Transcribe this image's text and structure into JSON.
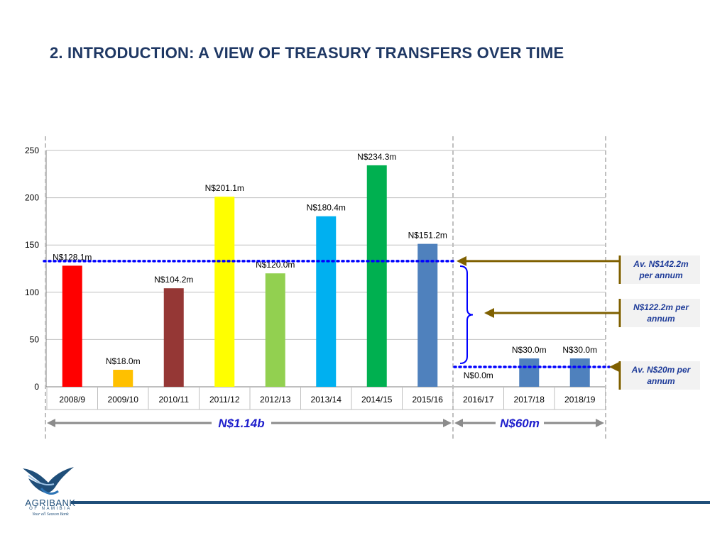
{
  "slide": {
    "title": "2. INTRODUCTION: A VIEW OF TREASURY TRANSFERS OVER TIME"
  },
  "logo": {
    "name": "AGRIBANK",
    "sub": "OF NAMIBIA",
    "tagline": "Your all Season Bank"
  },
  "colors": {
    "title": "#1f3864",
    "average_line": "#0000ff",
    "annotation_arrow": "#7f6000",
    "brace": "#0000ff",
    "span_arrow": "#8c8c8c",
    "total_text": "#1f1fcc",
    "footer_line": "#1f4e79"
  },
  "chart_data": {
    "type": "bar",
    "categories": [
      "2008/9",
      "2009/10",
      "2010/11",
      "2011/12",
      "2012/13",
      "2013/14",
      "2014/15",
      "2015/16",
      "2016/17",
      "2017/18",
      "2018/19"
    ],
    "values": [
      128.1,
      18.0,
      104.2,
      201.1,
      120.0,
      180.4,
      234.3,
      151.2,
      0.0,
      30.0,
      30.0
    ],
    "data_labels": [
      "N$128.1m",
      "N$18.0m",
      "N$104.2m",
      "N$201.1m",
      "N$120.0m",
      "N$180.4m",
      "N$234.3m",
      "N$151.2m",
      "N$0.0m",
      "N$30.0m",
      "N$30.0m"
    ],
    "bar_colors": [
      "#ff0000",
      "#ffc000",
      "#953735",
      "#ffff00",
      "#92d050",
      "#00b0f0",
      "#00b050",
      "#4f81bd",
      "#4f81bd",
      "#4f81bd",
      "#4f81bd"
    ],
    "ylim": [
      0,
      250
    ],
    "yticks": [
      0,
      50,
      100,
      150,
      200,
      250
    ],
    "ytick_labels": [
      "0",
      "50",
      "100",
      "150",
      "200",
      "250"
    ],
    "grid": true,
    "reference_lines": [
      {
        "value": 133,
        "from_category": 0,
        "to_category": 8
      },
      {
        "value": 21,
        "from_category": 8,
        "to_category": 10
      }
    ],
    "annotations": [
      {
        "text_line1": "Av. N$142.2m",
        "text_line2": "per annum",
        "points_to": 133,
        "italic": true
      },
      {
        "text_line1": "N$122.2m per",
        "text_line2": "annum",
        "points_to": 77,
        "italic": true
      },
      {
        "text_line1": "Av. N$20m per",
        "text_line2": "annum",
        "points_to": 21,
        "italic": true
      }
    ],
    "period_totals": [
      {
        "label": "N$1.14b",
        "from_category": 0,
        "to_category": 7
      },
      {
        "label": "N$60m",
        "from_category": 8,
        "to_category": 10
      }
    ]
  }
}
